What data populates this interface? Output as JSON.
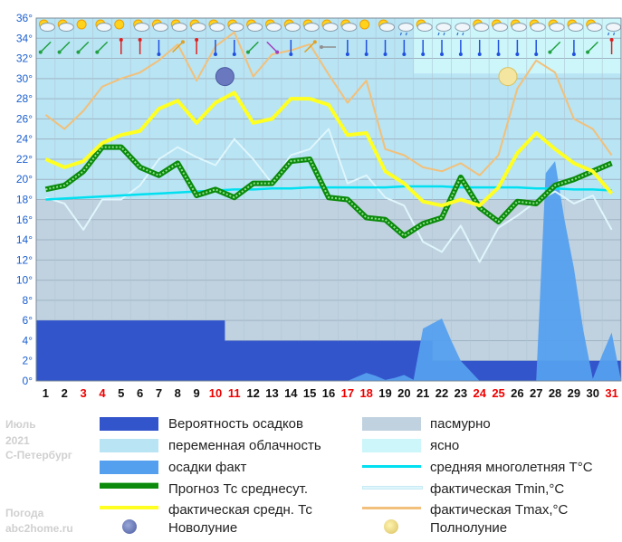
{
  "side_info": {
    "month": "Июль",
    "year": "2021",
    "city": "С-Петербург",
    "site_line1": "Погода",
    "site_line2": "abc2home.ru"
  },
  "legend": {
    "precip_prob": "Вероятность осадков",
    "overcast": "пасмурно",
    "partly_cloudy": "переменная облачность",
    "clear": "ясно",
    "precip_fact": "осадки факт",
    "climate_avg": "средняя многолетняя T°C",
    "forecast_avg": "Прогноз Тс среднесут.",
    "fact_tmin": "фактическая Tmin,°C",
    "fact_avg": "фактическая средн. Тс",
    "fact_tmax": "фактическая Tmax,°C",
    "new_moon": "Новолуние",
    "full_moon": "Полнолуние"
  },
  "colors": {
    "precip_prob": "#3355cc",
    "overcast": "#c0d2e0",
    "partly_cloudy": "#b8e4f4",
    "clear": "#ccf6fa",
    "precip_fact": "#55a0ee",
    "climate_avg": "#00e0f0",
    "forecast_avg": "#0b8a0b",
    "fact_tmin": "#dff6fc",
    "fact_avg": "#ffff22",
    "fact_tmax": "#f2c07a",
    "weekend_day": "#ee0000",
    "axis_label": "#1a5fd0"
  },
  "chart_data": {
    "type": "line",
    "x": [
      1,
      2,
      3,
      4,
      5,
      6,
      7,
      8,
      9,
      10,
      11,
      12,
      13,
      14,
      15,
      16,
      17,
      18,
      19,
      20,
      21,
      22,
      23,
      24,
      25,
      26,
      27,
      28,
      29,
      30,
      31
    ],
    "x_tick_labels": [
      "1",
      "2",
      "3",
      "4",
      "5",
      "6",
      "7",
      "8",
      "9",
      "10",
      "11",
      "12",
      "13",
      "14",
      "15",
      "16",
      "17",
      "18",
      "19",
      "20",
      "21",
      "22",
      "23",
      "24",
      "25",
      "26",
      "27",
      "28",
      "29",
      "30",
      "31"
    ],
    "red_days": [
      3,
      4,
      10,
      11,
      17,
      18,
      24,
      25,
      31
    ],
    "ylim": [
      0,
      36
    ],
    "y_ticks": [
      0,
      2,
      4,
      6,
      8,
      10,
      12,
      14,
      16,
      18,
      20,
      22,
      24,
      26,
      28,
      30,
      32,
      34,
      36
    ],
    "y_tick_labels": [
      "0°",
      "2°",
      "4°",
      "6°",
      "8°",
      "10°",
      "12°",
      "14°",
      "16°",
      "18°",
      "20°",
      "22°",
      "24°",
      "26°",
      "28°",
      "30°",
      "32°",
      "34°",
      "36°"
    ],
    "grid": true,
    "cloud_background": [
      {
        "from": 1,
        "to": 20.5,
        "upper": "partly_cloudy",
        "lower": "overcast",
        "split": 18
      },
      {
        "from": 20.5,
        "to": 31.5,
        "upper": "clear",
        "mid": "partly_cloudy",
        "lower": "overcast",
        "split_upper": 30.5,
        "split": 18
      }
    ],
    "series": [
      {
        "name": "Вероятность осадков",
        "kind": "step",
        "values": [
          6,
          6,
          6,
          6,
          6,
          6,
          6,
          6,
          6,
          6,
          4,
          4,
          4,
          4,
          4,
          4,
          4,
          4,
          4,
          4,
          4,
          2,
          2,
          2,
          2,
          2,
          2,
          2,
          2,
          2,
          2
        ]
      },
      {
        "name": "средняя многолетняя T°C",
        "values": [
          18.0,
          18.1,
          18.2,
          18.3,
          18.4,
          18.5,
          18.6,
          18.7,
          18.8,
          18.9,
          19.0,
          19.0,
          19.1,
          19.1,
          19.2,
          19.2,
          19.2,
          19.2,
          19.2,
          19.3,
          19.3,
          19.3,
          19.2,
          19.2,
          19.2,
          19.2,
          19.1,
          19.1,
          19.0,
          19.0,
          18.9
        ]
      },
      {
        "name": "фактическая Tmax,°C",
        "values": [
          26.4,
          25.0,
          26.8,
          29.2,
          30.0,
          30.6,
          31.8,
          33.4,
          29.8,
          33.2,
          34.6,
          30.2,
          32.4,
          32.8,
          33.4,
          30.4,
          27.6,
          29.8,
          23.0,
          22.4,
          21.2,
          20.8,
          21.6,
          20.4,
          22.4,
          29.0,
          31.8,
          30.6,
          26.0,
          25.0,
          22.4
        ]
      },
      {
        "name": "фактическая Tmin,°C",
        "values": [
          18.2,
          17.6,
          15.0,
          18.0,
          18.0,
          19.4,
          22.0,
          23.2,
          22.2,
          21.4,
          24.0,
          22.0,
          19.6,
          22.4,
          23.0,
          25.0,
          19.6,
          20.4,
          18.2,
          17.4,
          13.8,
          12.8,
          15.4,
          11.8,
          15.2,
          16.4,
          17.8,
          18.8,
          17.6,
          18.4,
          15.0
        ]
      },
      {
        "name": "Прогноз Тс среднесут.",
        "values": [
          19.0,
          19.4,
          20.8,
          23.2,
          23.2,
          21.2,
          20.4,
          21.6,
          18.4,
          19.0,
          18.2,
          19.6,
          19.6,
          21.8,
          22.0,
          18.2,
          18.0,
          16.2,
          16.0,
          14.4,
          15.6,
          16.2,
          20.2,
          17.2,
          15.8,
          17.8,
          17.6,
          19.4,
          20.0,
          20.8,
          21.6
        ]
      },
      {
        "name": "фактическая средн. Тс",
        "values": [
          22.0,
          21.2,
          21.8,
          23.6,
          24.4,
          24.8,
          27.0,
          27.8,
          25.6,
          27.6,
          28.6,
          25.6,
          26.0,
          28.0,
          28.0,
          27.4,
          24.4,
          24.6,
          20.8,
          19.6,
          17.8,
          17.4,
          18.0,
          17.4,
          19.2,
          22.6,
          24.6,
          23.0,
          21.6,
          20.8,
          18.6
        ]
      },
      {
        "name": "осадки факт",
        "kind": "area",
        "points": [
          [
            17,
            0
          ],
          [
            17.5,
            0.4
          ],
          [
            18,
            0.8
          ],
          [
            18.5,
            0.5
          ],
          [
            19,
            0.1
          ],
          [
            19.5,
            0.3
          ],
          [
            20,
            0.6
          ],
          [
            20.5,
            0.1
          ],
          [
            21,
            5.2
          ],
          [
            22,
            6.2
          ],
          [
            22.5,
            4.0
          ],
          [
            23,
            2.0
          ],
          [
            23.5,
            1.0
          ],
          [
            24,
            0
          ],
          [
            25,
            0
          ],
          [
            26,
            0
          ],
          [
            26.5,
            0
          ],
          [
            27,
            0
          ],
          [
            27.5,
            20.6
          ],
          [
            28,
            21.8
          ],
          [
            28.5,
            16.0
          ],
          [
            29,
            11.2
          ],
          [
            29.5,
            5.0
          ],
          [
            30,
            0.2
          ],
          [
            30.5,
            2.6
          ],
          [
            31,
            4.8
          ],
          [
            31.5,
            0
          ]
        ]
      }
    ],
    "new_moon_day": 10,
    "full_moon_day": 25,
    "weather_icons": [
      "partly",
      "partly",
      "sun",
      "partly",
      "sun",
      "partly",
      "partly",
      "partly",
      "partly",
      "partly",
      "partly",
      "partly",
      "partly",
      "partly",
      "partly",
      "partly",
      "partly",
      "sun",
      "partly",
      "rain",
      "partly",
      "rain",
      "rain",
      "partly",
      "partly",
      "partly",
      "partly",
      "partly",
      "partly",
      "partly",
      "rain"
    ],
    "wind_icons": [
      "sw",
      "sw",
      "sw",
      "sw",
      "n",
      "n",
      "s",
      "ne",
      "n",
      "s",
      "s",
      "sw",
      "se",
      "s",
      "ne",
      "w",
      "s",
      "s",
      "s",
      "s",
      "s",
      "s",
      "s",
      "s",
      "s",
      "s",
      "s",
      "sw",
      "s",
      "sw",
      "n"
    ]
  }
}
